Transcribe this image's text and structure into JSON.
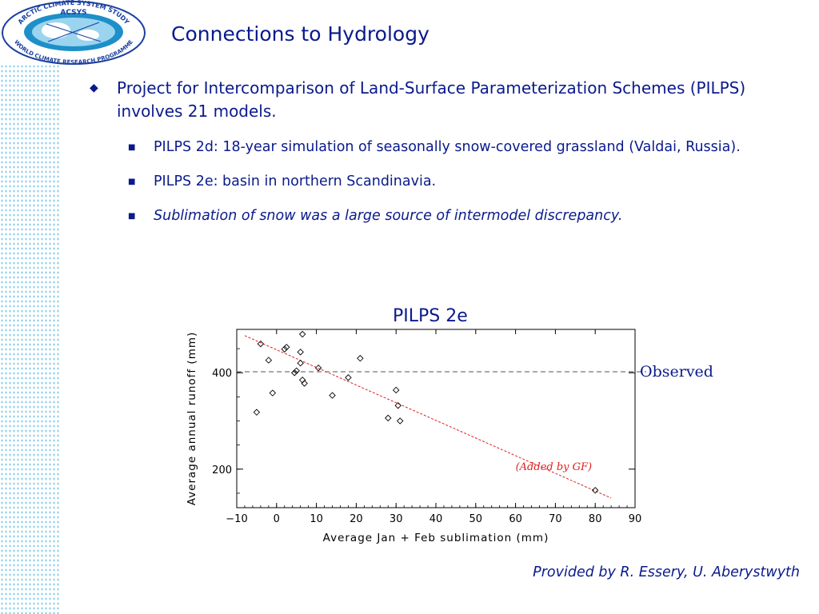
{
  "logo": {
    "top_text": "ARCTIC CLIMATE SYSTEM STUDY",
    "center_text": "ACSYS",
    "bottom_text": "WORLD CLIMATE RESEARCH PROGRAMME"
  },
  "slide": {
    "title": "Connections to Hydrology",
    "bullet_main": "Project for Intercomparison of Land-Surface Parameterization Schemes (PILPS) involves 21 models.",
    "sub_bullets": [
      "PILPS 2d: 18-year simulation of seasonally snow-covered grassland (Valdai, Russia).",
      "PILPS 2e: basin in northern Scandinavia.",
      "Sublimation of snow was a large source of intermodel discrepancy."
    ],
    "credit": "Provided by R. Essery, U. Aberystwyth"
  },
  "chart_data": {
    "type": "scatter",
    "title": "PILPS 2e",
    "xlabel": "Average Jan + Feb sublimation (mm)",
    "ylabel": "Average annual runoff (mm)",
    "xlim": [
      -10,
      90
    ],
    "ylim": [
      120,
      490
    ],
    "xticks": [
      "−10",
      "0",
      "10",
      "20",
      "30",
      "40",
      "50",
      "60",
      "70",
      "80",
      "90"
    ],
    "yticks": [
      "200",
      "400"
    ],
    "points": [
      {
        "x": -5,
        "y": 318
      },
      {
        "x": -4,
        "y": 460
      },
      {
        "x": -2,
        "y": 426
      },
      {
        "x": -1,
        "y": 358
      },
      {
        "x": 2,
        "y": 449
      },
      {
        "x": 2.5,
        "y": 453
      },
      {
        "x": 4.5,
        "y": 400
      },
      {
        "x": 5,
        "y": 404
      },
      {
        "x": 6,
        "y": 420
      },
      {
        "x": 6,
        "y": 443
      },
      {
        "x": 6.5,
        "y": 480
      },
      {
        "x": 6.5,
        "y": 385
      },
      {
        "x": 7,
        "y": 378
      },
      {
        "x": 10.5,
        "y": 410
      },
      {
        "x": 14,
        "y": 353
      },
      {
        "x": 18,
        "y": 390
      },
      {
        "x": 21,
        "y": 430
      },
      {
        "x": 28,
        "y": 306
      },
      {
        "x": 30,
        "y": 364
      },
      {
        "x": 30.5,
        "y": 332
      },
      {
        "x": 31,
        "y": 300
      },
      {
        "x": 80,
        "y": 156
      }
    ],
    "observed": {
      "label": "Observed",
      "y": 402
    },
    "trendline": {
      "label": "(Added by GF)",
      "x": [
        -8,
        84
      ],
      "y": [
        477,
        140
      ]
    },
    "colors": {
      "points": "#000000",
      "trend": "#e02020",
      "observed": "#555555",
      "text": "#0a1a8c"
    }
  }
}
